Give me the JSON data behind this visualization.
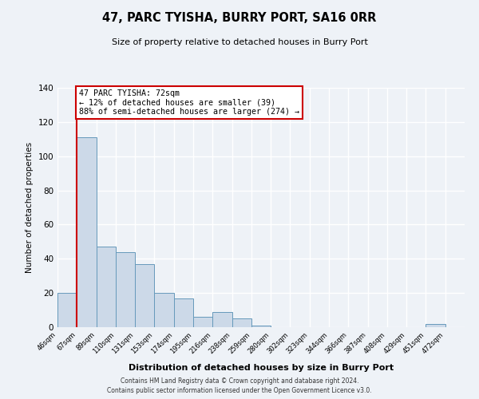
{
  "title": "47, PARC TYISHA, BURRY PORT, SA16 0RR",
  "subtitle": "Size of property relative to detached houses in Burry Port",
  "xlabel": "Distribution of detached houses by size in Burry Port",
  "ylabel": "Number of detached properties",
  "bar_color": "#ccd9e8",
  "bar_edge_color": "#6699bb",
  "bar_values": [
    20,
    111,
    47,
    44,
    37,
    20,
    17,
    6,
    9,
    5,
    1,
    0,
    0,
    0,
    0,
    0,
    0,
    0,
    0,
    2,
    0
  ],
  "bin_labels": [
    "46sqm",
    "67sqm",
    "89sqm",
    "110sqm",
    "131sqm",
    "153sqm",
    "174sqm",
    "195sqm",
    "216sqm",
    "238sqm",
    "259sqm",
    "280sqm",
    "302sqm",
    "323sqm",
    "344sqm",
    "366sqm",
    "387sqm",
    "408sqm",
    "429sqm",
    "451sqm",
    "472sqm"
  ],
  "ylim": [
    0,
    140
  ],
  "yticks": [
    0,
    20,
    40,
    60,
    80,
    100,
    120,
    140
  ],
  "property_line_x": 1.0,
  "annotation_text_line1": "47 PARC TYISHA: 72sqm",
  "annotation_text_line2": "← 12% of detached houses are smaller (39)",
  "annotation_text_line3": "88% of semi-detached houses are larger (274) →",
  "annotation_box_color": "#ffffff",
  "annotation_box_edge_color": "#cc0000",
  "property_vline_color": "#cc0000",
  "background_color": "#eef2f7",
  "grid_color": "#ffffff",
  "footer_line1": "Contains HM Land Registry data © Crown copyright and database right 2024.",
  "footer_line2": "Contains public sector information licensed under the Open Government Licence v3.0."
}
